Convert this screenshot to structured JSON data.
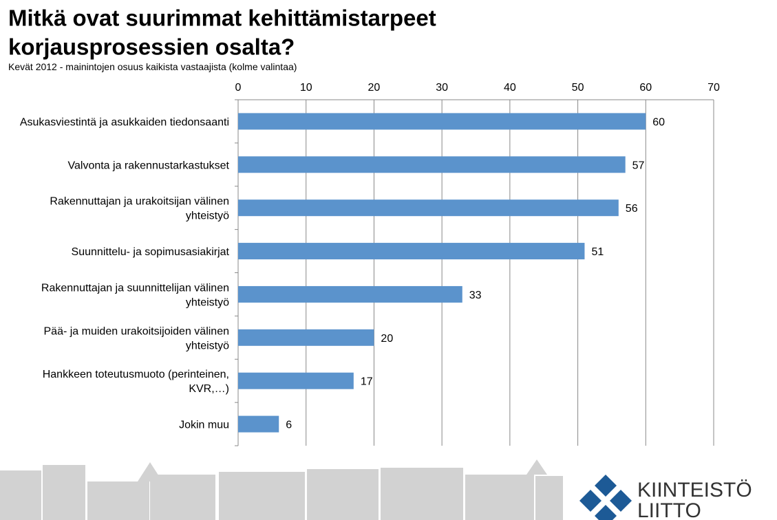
{
  "chart_data": {
    "type": "bar",
    "orientation": "horizontal",
    "title": "Mitkä ovat suurimmat kehittämistarpeet korjausprosessien osalta?",
    "subtitle": "Kevät 2012 - mainintojen osuus kaikista vastaajista (kolme valintaa)",
    "categories": [
      "Asukasviestintä ja asukkaiden tiedonsaanti",
      "Valvonta ja rakennustarkastukset",
      "Rakennuttajan ja urakoitsijan välinen yhteistyö",
      "Suunnittelu- ja sopimusasiakirjat",
      "Rakennuttajan ja suunnittelijan välinen yhteistyö",
      "Pää- ja muiden urakoitsijoiden välinen yhteistyö",
      "Hankkeen toteutusmuoto (perinteinen, KVR,…)",
      "Jokin muu"
    ],
    "values": [
      60,
      57,
      56,
      51,
      33,
      20,
      17,
      6
    ],
    "color": "#5b93cc",
    "xlim": [
      0,
      70
    ],
    "xticks": [
      0,
      10,
      20,
      30,
      40,
      50,
      60,
      70
    ],
    "grid": true
  },
  "logo": {
    "line1": "KIINTEISTÖ",
    "line2": "LIITTO"
  }
}
